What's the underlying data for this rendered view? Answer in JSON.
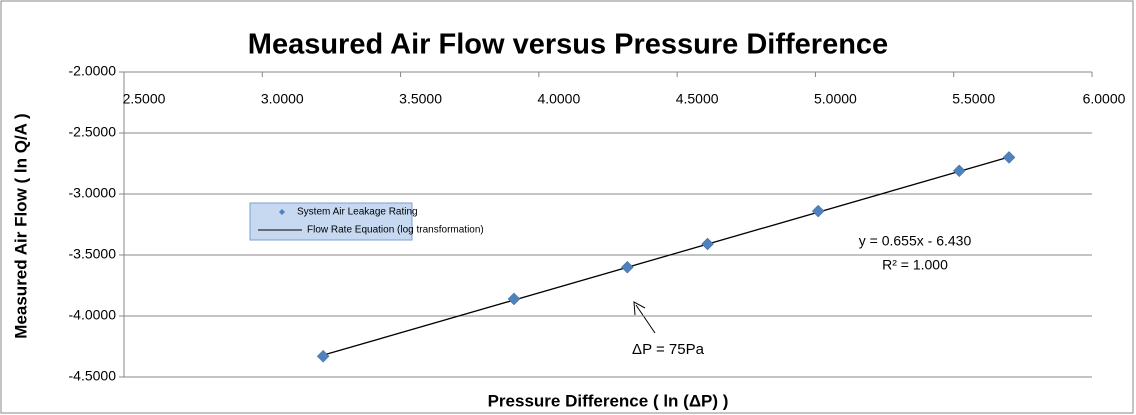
{
  "chart_data": {
    "type": "scatter",
    "title": "Measured Air Flow versus Pressure Difference",
    "x_label": "Pressure Difference ( ln (ΔP) )",
    "y_label": "Measured Air Flow ( ln Q/A )",
    "series": [
      {
        "name": "System Air Leakage Rating",
        "color": "#4f81bd",
        "kind": "marker",
        "x": [
          3.22,
          3.91,
          4.32,
          4.61,
          5.01,
          5.52,
          5.7
        ],
        "values": [
          -4.33,
          -3.86,
          -3.6,
          -3.41,
          -3.14,
          -2.81,
          -2.7
        ]
      },
      {
        "name": "Flow Rate Equation (log transformation)",
        "color": "#000000",
        "kind": "line",
        "x": [
          3.22,
          5.7
        ],
        "values": [
          -4.321,
          -2.697
        ]
      }
    ],
    "annotations": [
      "y = 0.655x - 6.430",
      "R² = 1.000",
      "ΔP = 75Pa"
    ],
    "xlim": [
      2.5,
      6.0
    ],
    "xticks": [
      {
        "value": 2.5,
        "label": "2.5000"
      },
      {
        "value": 3.0,
        "label": "3.0000"
      },
      {
        "value": 3.5,
        "label": "3.5000"
      },
      {
        "value": 4.0,
        "label": "4.0000"
      },
      {
        "value": 4.5,
        "label": "4.5000"
      },
      {
        "value": 5.0,
        "label": "5.0000"
      },
      {
        "value": 5.5,
        "label": "5.5000"
      },
      {
        "value": 6.0,
        "label": "6.0000"
      }
    ],
    "ylim": [
      -4.5,
      -2.0
    ],
    "yticks": [
      {
        "value": -2.0,
        "label": "-2.0000"
      },
      {
        "value": -2.5,
        "label": "-2.5000"
      },
      {
        "value": -3.0,
        "label": "-3.0000"
      },
      {
        "value": -3.5,
        "label": "-3.5000"
      },
      {
        "value": -4.0,
        "label": "-4.0000"
      },
      {
        "value": -4.5,
        "label": "-4.5000"
      }
    ],
    "grid": true
  }
}
